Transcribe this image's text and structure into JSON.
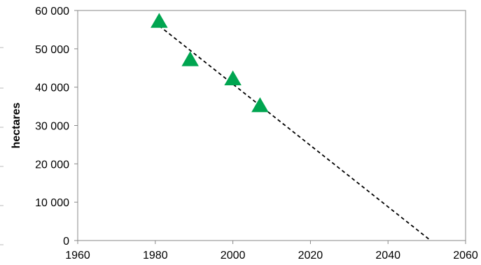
{
  "chart_data": {
    "type": "scatter",
    "title": "",
    "xlabel": "",
    "ylabel": "hectares",
    "xlim": [
      1960,
      2060
    ],
    "ylim": [
      0,
      60000
    ],
    "x_ticks": [
      1960,
      1980,
      2000,
      2020,
      2040,
      2060
    ],
    "x_tick_labels": [
      "1960",
      "1980",
      "2000",
      "2020",
      "2040",
      "2060"
    ],
    "y_ticks": [
      0,
      10000,
      20000,
      30000,
      40000,
      50000,
      60000
    ],
    "y_tick_labels": [
      "0",
      "10 000",
      "20 000",
      "30 000",
      "40 000",
      "50 000",
      "60 000"
    ],
    "grid": false,
    "series": [
      {
        "marker": "triangle",
        "color": "#00a550",
        "points": [
          {
            "x": 1981,
            "y": 57000
          },
          {
            "x": 1989,
            "y": 47000
          },
          {
            "x": 2000,
            "y": 42000
          },
          {
            "x": 2007,
            "y": 35000
          }
        ]
      }
    ],
    "trendline": {
      "style": "dashed",
      "color": "#000000",
      "start": {
        "x": 1981,
        "y": 56000
      },
      "end": {
        "x": 2051,
        "y": 0
      }
    }
  }
}
